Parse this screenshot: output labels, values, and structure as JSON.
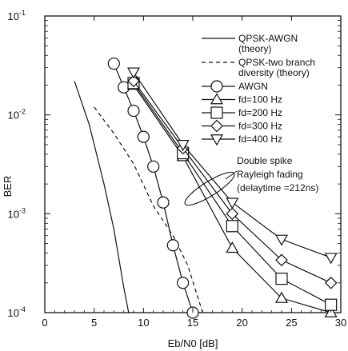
{
  "chart_data": {
    "type": "line",
    "xlabel": "Eb/N0 [dB]",
    "ylabel": "BER",
    "x_scale": "linear",
    "y_scale": "log",
    "xlim": [
      0,
      30
    ],
    "ylim": [
      0.0001,
      0.1
    ],
    "x_ticks": [
      0,
      5,
      10,
      15,
      20,
      25,
      30
    ],
    "y_ticks": [
      {
        "value": 0.1,
        "base": "10",
        "exp": "-1"
      },
      {
        "value": 0.01,
        "base": "10",
        "exp": "-2"
      },
      {
        "value": 0.001,
        "base": "10",
        "exp": "-3"
      },
      {
        "value": 0.0001,
        "base": "10",
        "exp": "-4"
      }
    ],
    "grid": false,
    "legend_position": "top-right",
    "series": [
      {
        "name": "QPSK-AWGN (theory)",
        "legend_lines": [
          "QPSK-AWGN",
          "(theory)"
        ],
        "style": "solid",
        "marker": "none",
        "x": [
          3.0,
          4.5,
          6.0,
          7.0,
          8.0,
          8.5
        ],
        "y": [
          0.022,
          0.008,
          0.002,
          0.0007,
          0.00018,
          0.0001
        ]
      },
      {
        "name": "QPSK-two branch diversity (theory)",
        "legend_lines": [
          "QPSK-two branch",
          "diversity (theory)"
        ],
        "style": "dashed",
        "marker": "none",
        "x": [
          5.0,
          7.0,
          9.0,
          11.0,
          13.0,
          14.5,
          16.0
        ],
        "y": [
          0.012,
          0.0065,
          0.0032,
          0.0012,
          0.0006,
          0.0003,
          0.0001
        ]
      },
      {
        "name": "AWGN",
        "legend_lines": [
          "AWGN"
        ],
        "style": "solid",
        "marker": "circle",
        "x": [
          7,
          8,
          9,
          10,
          11,
          12,
          13,
          14,
          15
        ],
        "y": [
          0.033,
          0.019,
          0.011,
          0.006,
          0.003,
          0.0013,
          0.00048,
          0.0002,
          0.0001
        ]
      },
      {
        "name": "fd=100 Hz",
        "legend_lines": [
          "fd=100 Hz"
        ],
        "style": "solid",
        "marker": "triangle-up",
        "x": [
          9,
          14,
          19,
          24,
          29
        ],
        "y": [
          0.02,
          0.0038,
          0.00045,
          0.00014,
          0.0001
        ]
      },
      {
        "name": "fd=200 Hz",
        "legend_lines": [
          "fd=200 Hz"
        ],
        "style": "solid",
        "marker": "square",
        "x": [
          9,
          14,
          19,
          24,
          29
        ],
        "y": [
          0.021,
          0.0041,
          0.00075,
          0.00022,
          0.00012
        ]
      },
      {
        "name": "fd=300 Hz",
        "legend_lines": [
          "fd=300 Hz"
        ],
        "style": "solid",
        "marker": "diamond",
        "x": [
          9,
          14,
          19,
          24,
          29
        ],
        "y": [
          0.022,
          0.0046,
          0.001,
          0.00034,
          0.0002
        ]
      },
      {
        "name": "fd=400 Hz",
        "legend_lines": [
          "fd=400 Hz"
        ],
        "style": "solid",
        "marker": "triangle-down",
        "x": [
          9,
          14,
          19,
          24,
          29
        ],
        "y": [
          0.027,
          0.005,
          0.0013,
          0.00055,
          0.00036
        ]
      }
    ],
    "annotation": {
      "lines": [
        "Double spike",
        "Rayleigh fading",
        "(delaytime =212ns)"
      ],
      "marks": "ellipse around the fd curves near Eb/N0 = 16-22 dB"
    }
  }
}
